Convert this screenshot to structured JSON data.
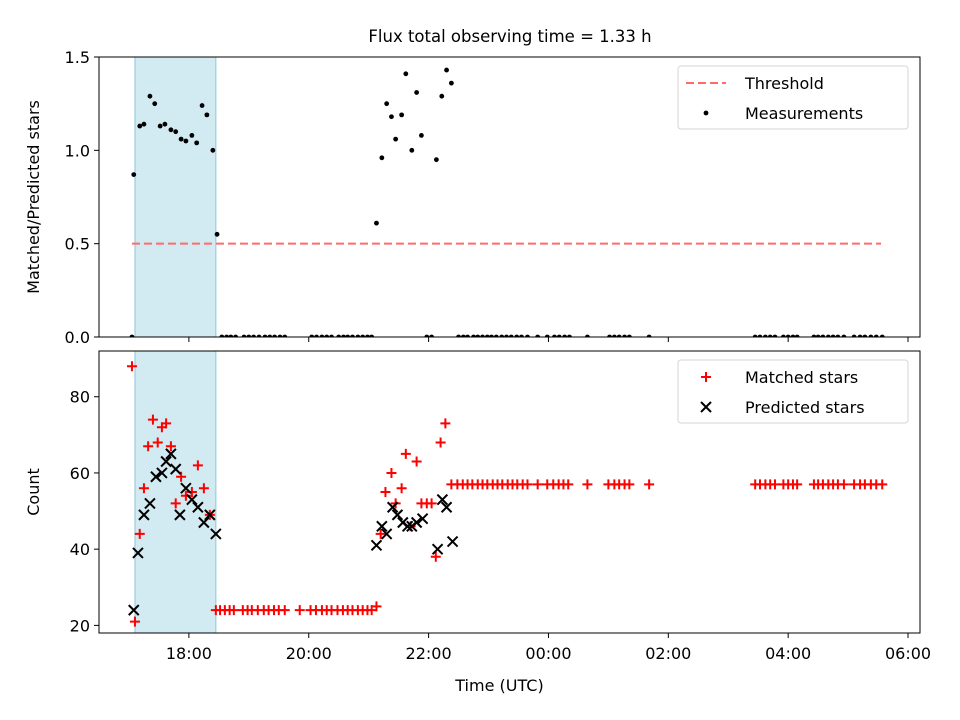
{
  "title": "Flux total observing time = 1.33 h",
  "chart_data": [
    {
      "type": "scatter",
      "ylabel": "Matched/Predicted stars",
      "xlabel": "",
      "xlim": [
        16.5,
        30.2
      ],
      "ylim": [
        0,
        1.5
      ],
      "yticks": [
        0,
        0.5,
        1.0,
        1.5
      ],
      "ytick_labels": [
        "0.0",
        "0.5",
        "1.0",
        "1.5"
      ],
      "xticks": [
        18,
        20,
        22,
        24,
        26,
        28,
        30
      ],
      "xtick_labels": [
        "18:00",
        "20:00",
        "22:00",
        "00:00",
        "02:00",
        "04:00",
        "06:00"
      ],
      "legend_position": "top-right",
      "legend": [
        {
          "label": "Threshold",
          "style": "dashed-line",
          "color": "#ff6b6b"
        },
        {
          "label": "Measurements",
          "style": "dot",
          "color": "#000000"
        }
      ],
      "shaded_band": {
        "x0": 17.1,
        "x1": 18.45,
        "color": "#add8e6"
      },
      "threshold": {
        "y": 0.5,
        "x0": 17.05,
        "x1": 29.55
      },
      "series": [
        {
          "name": "Measurements",
          "marker": "dot",
          "color": "#000000",
          "points": [
            [
              17.05,
              0.0
            ],
            [
              17.08,
              0.87
            ],
            [
              17.18,
              1.13
            ],
            [
              17.25,
              1.14
            ],
            [
              17.35,
              1.29
            ],
            [
              17.43,
              1.25
            ],
            [
              17.52,
              1.13
            ],
            [
              17.6,
              1.14
            ],
            [
              17.7,
              1.11
            ],
            [
              17.78,
              1.1
            ],
            [
              17.87,
              1.06
            ],
            [
              17.95,
              1.05
            ],
            [
              18.05,
              1.08
            ],
            [
              18.13,
              1.04
            ],
            [
              18.22,
              1.24
            ],
            [
              18.3,
              1.19
            ],
            [
              18.4,
              1.0
            ],
            [
              18.47,
              0.55
            ],
            [
              18.55,
              0.0
            ],
            [
              18.63,
              0.0
            ],
            [
              18.7,
              0.0
            ],
            [
              18.78,
              0.0
            ],
            [
              18.92,
              0.0
            ],
            [
              19.0,
              0.0
            ],
            [
              19.08,
              0.0
            ],
            [
              19.17,
              0.0
            ],
            [
              19.27,
              0.0
            ],
            [
              19.35,
              0.0
            ],
            [
              19.43,
              0.0
            ],
            [
              19.52,
              0.0
            ],
            [
              19.6,
              0.0
            ],
            [
              20.05,
              0.0
            ],
            [
              20.13,
              0.0
            ],
            [
              20.22,
              0.0
            ],
            [
              20.3,
              0.0
            ],
            [
              20.38,
              0.0
            ],
            [
              20.5,
              0.0
            ],
            [
              20.58,
              0.0
            ],
            [
              20.65,
              0.0
            ],
            [
              20.73,
              0.0
            ],
            [
              20.82,
              0.0
            ],
            [
              20.9,
              0.0
            ],
            [
              20.98,
              0.0
            ],
            [
              21.05,
              0.0
            ],
            [
              21.13,
              0.61
            ],
            [
              21.22,
              0.96
            ],
            [
              21.3,
              1.25
            ],
            [
              21.38,
              1.18
            ],
            [
              21.45,
              1.06
            ],
            [
              21.55,
              1.19
            ],
            [
              21.62,
              1.41
            ],
            [
              21.72,
              1.0
            ],
            [
              21.8,
              1.31
            ],
            [
              21.88,
              1.08
            ],
            [
              21.97,
              0.0
            ],
            [
              22.05,
              0.0
            ],
            [
              22.13,
              0.95
            ],
            [
              22.22,
              1.29
            ],
            [
              22.3,
              1.43
            ],
            [
              22.38,
              1.36
            ],
            [
              22.5,
              0.0
            ],
            [
              22.58,
              0.0
            ],
            [
              22.65,
              0.0
            ],
            [
              22.75,
              0.0
            ],
            [
              22.82,
              0.0
            ],
            [
              22.9,
              0.0
            ],
            [
              22.98,
              0.0
            ],
            [
              23.05,
              0.0
            ],
            [
              23.13,
              0.0
            ],
            [
              23.22,
              0.0
            ],
            [
              23.3,
              0.0
            ],
            [
              23.38,
              0.0
            ],
            [
              23.47,
              0.0
            ],
            [
              23.55,
              0.0
            ],
            [
              23.65,
              0.0
            ],
            [
              23.82,
              0.0
            ],
            [
              23.98,
              0.0
            ],
            [
              24.1,
              0.0
            ],
            [
              24.18,
              0.0
            ],
            [
              24.27,
              0.0
            ],
            [
              24.35,
              0.0
            ],
            [
              24.65,
              0.0
            ],
            [
              25.02,
              0.0
            ],
            [
              25.1,
              0.0
            ],
            [
              25.18,
              0.0
            ],
            [
              25.27,
              0.0
            ],
            [
              25.35,
              0.0
            ],
            [
              25.68,
              0.0
            ],
            [
              27.45,
              0.0
            ],
            [
              27.53,
              0.0
            ],
            [
              27.62,
              0.0
            ],
            [
              27.7,
              0.0
            ],
            [
              27.78,
              0.0
            ],
            [
              27.92,
              0.0
            ],
            [
              28.0,
              0.0
            ],
            [
              28.08,
              0.0
            ],
            [
              28.15,
              0.0
            ],
            [
              28.43,
              0.0
            ],
            [
              28.5,
              0.0
            ],
            [
              28.58,
              0.0
            ],
            [
              28.67,
              0.0
            ],
            [
              28.75,
              0.0
            ],
            [
              28.83,
              0.0
            ],
            [
              28.93,
              0.0
            ],
            [
              29.1,
              0.0
            ],
            [
              29.2,
              0.0
            ],
            [
              29.28,
              0.0
            ],
            [
              29.38,
              0.0
            ],
            [
              29.47,
              0.0
            ],
            [
              29.57,
              0.0
            ]
          ]
        }
      ]
    },
    {
      "type": "scatter",
      "ylabel": "Count",
      "xlabel": "Time (UTC)",
      "xlim": [
        16.5,
        30.2
      ],
      "ylim": [
        18,
        92
      ],
      "yticks": [
        20,
        40,
        60,
        80
      ],
      "ytick_labels": [
        "20",
        "40",
        "60",
        "80"
      ],
      "xticks": [
        18,
        20,
        22,
        24,
        26,
        28,
        30
      ],
      "xtick_labels": [
        "18:00",
        "20:00",
        "22:00",
        "00:00",
        "02:00",
        "04:00",
        "06:00"
      ],
      "legend_position": "top-right",
      "legend": [
        {
          "label": "Matched stars",
          "style": "plus",
          "color": "#ff0000"
        },
        {
          "label": "Predicted stars",
          "style": "x",
          "color": "#000000"
        }
      ],
      "shaded_band": {
        "x0": 17.1,
        "x1": 18.45,
        "color": "#add8e6"
      },
      "series": [
        {
          "name": "Matched stars",
          "marker": "plus",
          "color": "#ff0000",
          "points": [
            [
              17.05,
              88
            ],
            [
              17.1,
              21
            ],
            [
              17.18,
              44
            ],
            [
              17.25,
              56
            ],
            [
              17.32,
              67
            ],
            [
              17.4,
              74
            ],
            [
              17.48,
              68
            ],
            [
              17.55,
              72
            ],
            [
              17.62,
              73
            ],
            [
              17.7,
              67
            ],
            [
              17.78,
              52
            ],
            [
              17.87,
              59
            ],
            [
              17.95,
              54
            ],
            [
              18.05,
              55
            ],
            [
              18.15,
              62
            ],
            [
              18.25,
              56
            ],
            [
              18.35,
              49
            ],
            [
              18.45,
              24
            ],
            [
              18.52,
              24
            ],
            [
              18.6,
              24
            ],
            [
              18.68,
              24
            ],
            [
              18.75,
              24
            ],
            [
              18.9,
              24
            ],
            [
              18.98,
              24
            ],
            [
              19.05,
              24
            ],
            [
              19.15,
              24
            ],
            [
              19.25,
              24
            ],
            [
              19.33,
              24
            ],
            [
              19.42,
              24
            ],
            [
              19.5,
              24
            ],
            [
              19.6,
              24
            ],
            [
              19.85,
              24
            ],
            [
              20.03,
              24
            ],
            [
              20.12,
              24
            ],
            [
              20.22,
              24
            ],
            [
              20.3,
              24
            ],
            [
              20.38,
              24
            ],
            [
              20.48,
              24
            ],
            [
              20.57,
              24
            ],
            [
              20.65,
              24
            ],
            [
              20.73,
              24
            ],
            [
              20.82,
              24
            ],
            [
              20.9,
              24
            ],
            [
              20.98,
              24
            ],
            [
              21.05,
              24
            ],
            [
              21.13,
              25
            ],
            [
              21.2,
              44
            ],
            [
              21.28,
              55
            ],
            [
              21.38,
              60
            ],
            [
              21.45,
              52
            ],
            [
              21.55,
              56
            ],
            [
              21.62,
              65
            ],
            [
              21.7,
              46
            ],
            [
              21.8,
              63
            ],
            [
              21.88,
              52
            ],
            [
              21.97,
              52
            ],
            [
              22.05,
              52
            ],
            [
              22.12,
              38
            ],
            [
              22.2,
              68
            ],
            [
              22.28,
              73
            ],
            [
              22.38,
              57
            ],
            [
              22.48,
              57
            ],
            [
              22.57,
              57
            ],
            [
              22.65,
              57
            ],
            [
              22.73,
              57
            ],
            [
              22.82,
              57
            ],
            [
              22.9,
              57
            ],
            [
              22.98,
              57
            ],
            [
              23.07,
              57
            ],
            [
              23.15,
              57
            ],
            [
              23.23,
              57
            ],
            [
              23.32,
              57
            ],
            [
              23.4,
              57
            ],
            [
              23.48,
              57
            ],
            [
              23.57,
              57
            ],
            [
              23.65,
              57
            ],
            [
              23.82,
              57
            ],
            [
              23.98,
              57
            ],
            [
              24.08,
              57
            ],
            [
              24.17,
              57
            ],
            [
              24.25,
              57
            ],
            [
              24.33,
              57
            ],
            [
              24.65,
              57
            ],
            [
              25.0,
              57
            ],
            [
              25.1,
              57
            ],
            [
              25.18,
              57
            ],
            [
              25.27,
              57
            ],
            [
              25.35,
              57
            ],
            [
              25.68,
              57
            ],
            [
              27.45,
              57
            ],
            [
              27.53,
              57
            ],
            [
              27.62,
              57
            ],
            [
              27.7,
              57
            ],
            [
              27.78,
              57
            ],
            [
              27.92,
              57
            ],
            [
              28.0,
              57
            ],
            [
              28.08,
              57
            ],
            [
              28.15,
              57
            ],
            [
              28.43,
              57
            ],
            [
              28.5,
              57
            ],
            [
              28.58,
              57
            ],
            [
              28.67,
              57
            ],
            [
              28.75,
              57
            ],
            [
              28.83,
              57
            ],
            [
              28.93,
              57
            ],
            [
              29.1,
              57
            ],
            [
              29.2,
              57
            ],
            [
              29.28,
              57
            ],
            [
              29.38,
              57
            ],
            [
              29.47,
              57
            ],
            [
              29.57,
              57
            ]
          ]
        },
        {
          "name": "Predicted stars",
          "marker": "x",
          "color": "#000000",
          "points": [
            [
              17.08,
              24
            ],
            [
              17.15,
              39
            ],
            [
              17.25,
              49
            ],
            [
              17.35,
              52
            ],
            [
              17.45,
              59
            ],
            [
              17.55,
              60
            ],
            [
              17.62,
              63
            ],
            [
              17.7,
              65
            ],
            [
              17.78,
              61
            ],
            [
              17.85,
              49
            ],
            [
              17.95,
              56
            ],
            [
              18.05,
              53
            ],
            [
              18.15,
              51
            ],
            [
              18.25,
              47
            ],
            [
              18.35,
              49
            ],
            [
              18.45,
              44
            ],
            [
              21.13,
              41
            ],
            [
              21.22,
              46
            ],
            [
              21.3,
              44
            ],
            [
              21.4,
              51
            ],
            [
              21.48,
              49
            ],
            [
              21.57,
              47
            ],
            [
              21.65,
              46
            ],
            [
              21.72,
              46
            ],
            [
              21.8,
              47
            ],
            [
              21.9,
              48
            ],
            [
              22.15,
              40
            ],
            [
              22.23,
              53
            ],
            [
              22.3,
              51
            ],
            [
              22.4,
              42
            ]
          ]
        }
      ]
    }
  ]
}
